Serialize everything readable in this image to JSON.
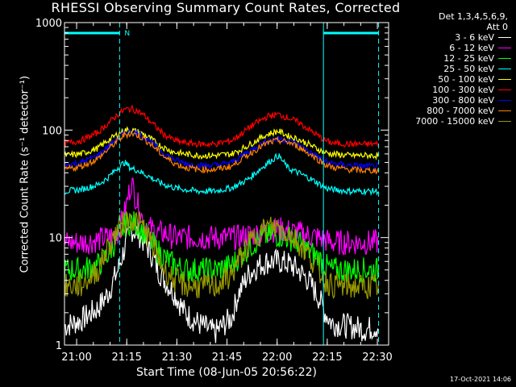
{
  "title": "RHESSI Observing Summary Count Rates, Corrected",
  "timestamp": "17-Oct-2021 14:06",
  "legend_header": [
    "Det 1,3,4,5,6,9,",
    "Att 0"
  ],
  "attenuator_marker": "N",
  "chart_data": {
    "type": "line",
    "title": "RHESSI Observing Summary Count Rates, Corrected",
    "xlabel": "Start Time (08-Jun-05 20:56:22)",
    "ylabel": "Corrected Count Rate (s⁻¹ detector⁻¹)",
    "x_unit": "minutes after 20:56:22",
    "xlim": [
      0,
      97
    ],
    "ylim": [
      1,
      1000
    ],
    "yscale": "log",
    "grid": false,
    "legend_position": "right",
    "x_ticks": [
      {
        "t": 3.63,
        "label": "21:00"
      },
      {
        "t": 18.63,
        "label": "21:15"
      },
      {
        "t": 33.63,
        "label": "21:30"
      },
      {
        "t": 48.63,
        "label": "21:45"
      },
      {
        "t": 63.63,
        "label": "22:00"
      },
      {
        "t": 78.63,
        "label": "22:15"
      },
      {
        "t": 93.63,
        "label": "22:30"
      }
    ],
    "y_ticks": [
      {
        "v": 1,
        "label": "1"
      },
      {
        "v": 10,
        "label": "10"
      },
      {
        "v": 100,
        "label": "100"
      },
      {
        "v": 1000,
        "label": "1000"
      }
    ],
    "vlines": [
      0,
      16.5,
      77.5,
      94
    ],
    "series": [
      {
        "name": "3 - 6 keV",
        "color": "#ffffff",
        "x": [
          0,
          5,
          10,
          13,
          16,
          18,
          20,
          22,
          24,
          26,
          28,
          30,
          33,
          36,
          40,
          45,
          50,
          52,
          55,
          58,
          61,
          64,
          67,
          70,
          73,
          76,
          78,
          80,
          85,
          90,
          94
        ],
        "values": [
          1.5,
          1.7,
          2.2,
          3.0,
          5.0,
          8.0,
          12,
          11,
          9,
          7,
          5,
          4,
          3,
          2,
          1.6,
          1.3,
          1.8,
          3.0,
          4.5,
          5.5,
          6.0,
          6.0,
          5.7,
          5.0,
          4.0,
          2.8,
          2.0,
          1.6,
          1.5,
          1.4,
          1.5
        ]
      },
      {
        "name": "6 - 12 keV",
        "color": "#ff00ff",
        "x": [
          0,
          5,
          10,
          13,
          16,
          18,
          20,
          22,
          24,
          26,
          28,
          30,
          33,
          36,
          40,
          45,
          50,
          52,
          55,
          58,
          61,
          64,
          67,
          70,
          73,
          76,
          78,
          80,
          85,
          90,
          94
        ],
        "values": [
          9,
          9,
          9.5,
          10,
          11,
          17,
          33,
          20,
          13,
          12,
          11,
          11,
          10,
          10,
          10,
          10,
          10,
          10,
          10.5,
          11,
          11.5,
          12,
          11.5,
          11,
          10.5,
          10,
          9.5,
          9,
          9,
          9,
          9
        ]
      },
      {
        "name": "12 - 25 keV",
        "color": "#00ff00",
        "x": [
          0,
          5,
          10,
          13,
          16,
          18,
          20,
          22,
          24,
          26,
          28,
          30,
          33,
          36,
          40,
          45,
          50,
          52,
          55,
          58,
          61,
          64,
          67,
          70,
          73,
          76,
          78,
          80,
          85,
          90,
          94
        ],
        "values": [
          5,
          5,
          5.5,
          7,
          10,
          13,
          14,
          13,
          11,
          9,
          7.5,
          6.5,
          5.5,
          5,
          5,
          5,
          5.5,
          6.5,
          8,
          9.5,
          10.5,
          10.5,
          10,
          9,
          7.5,
          6.5,
          5.5,
          5,
          5,
          5,
          5
        ]
      },
      {
        "name": "25 - 50 keV",
        "color": "#00ffff",
        "x": [
          0,
          5,
          10,
          13,
          16,
          18,
          20,
          22,
          24,
          26,
          28,
          30,
          33,
          36,
          40,
          45,
          50,
          52,
          55,
          58,
          61,
          64,
          67,
          70,
          73,
          76,
          78,
          80,
          85,
          90,
          94
        ],
        "values": [
          27,
          28,
          31,
          36,
          45,
          50,
          44,
          42,
          39,
          36,
          33,
          31,
          29,
          28,
          27,
          27,
          29,
          31,
          35,
          42,
          50,
          58,
          44,
          40,
          36,
          32,
          29,
          28,
          27,
          27,
          27
        ]
      },
      {
        "name": "50 - 100 keV",
        "color": "#ffff00",
        "x": [
          0,
          5,
          10,
          13,
          16,
          18,
          20,
          22,
          24,
          26,
          28,
          30,
          33,
          36,
          40,
          45,
          50,
          52,
          55,
          58,
          61,
          64,
          67,
          70,
          73,
          76,
          78,
          80,
          85,
          90,
          94
        ],
        "values": [
          58,
          60,
          68,
          80,
          92,
          100,
          100,
          96,
          90,
          82,
          74,
          68,
          62,
          60,
          58,
          58,
          60,
          64,
          72,
          82,
          92,
          98,
          88,
          82,
          74,
          66,
          62,
          60,
          58,
          58,
          58
        ]
      },
      {
        "name": "100 - 300 keV",
        "color": "#ff0000",
        "x": [
          0,
          5,
          10,
          13,
          16,
          18,
          20,
          22,
          24,
          26,
          28,
          30,
          33,
          36,
          40,
          45,
          50,
          52,
          55,
          58,
          61,
          64,
          67,
          70,
          73,
          76,
          78,
          80,
          85,
          90,
          94
        ],
        "values": [
          75,
          80,
          95,
          115,
          140,
          155,
          158,
          150,
          135,
          118,
          102,
          90,
          80,
          76,
          74,
          74,
          80,
          88,
          104,
          120,
          135,
          140,
          130,
          118,
          102,
          88,
          80,
          76,
          74,
          74,
          74
        ]
      },
      {
        "name": "300 - 800 keV",
        "color": "#0000ff",
        "x": [
          0,
          5,
          10,
          13,
          16,
          18,
          20,
          22,
          24,
          26,
          28,
          30,
          33,
          36,
          40,
          45,
          50,
          52,
          55,
          58,
          61,
          64,
          67,
          70,
          73,
          76,
          78,
          80,
          85,
          90,
          94
        ],
        "values": [
          47,
          50,
          58,
          70,
          84,
          94,
          97,
          93,
          86,
          77,
          68,
          60,
          53,
          49,
          47,
          47,
          50,
          55,
          63,
          72,
          80,
          83,
          80,
          73,
          64,
          56,
          51,
          49,
          47,
          46,
          46
        ]
      },
      {
        "name": "800 - 7000 keV",
        "color": "#ff8000",
        "x": [
          0,
          5,
          10,
          13,
          16,
          18,
          20,
          22,
          24,
          26,
          28,
          30,
          33,
          36,
          40,
          45,
          50,
          52,
          55,
          58,
          61,
          64,
          67,
          70,
          73,
          76,
          78,
          80,
          85,
          90,
          94
        ],
        "values": [
          43,
          46,
          54,
          66,
          80,
          90,
          93,
          89,
          82,
          73,
          64,
          56,
          49,
          45,
          43,
          43,
          46,
          51,
          59,
          68,
          76,
          80,
          77,
          70,
          61,
          53,
          48,
          45,
          43,
          42,
          42
        ]
      },
      {
        "name": "7000 - 15000 keV",
        "color": "#999900",
        "x": [
          0,
          5,
          10,
          13,
          16,
          18,
          20,
          22,
          24,
          26,
          28,
          30,
          33,
          36,
          40,
          45,
          50,
          52,
          55,
          58,
          61,
          64,
          67,
          70,
          73,
          76,
          78,
          80,
          85,
          90,
          94
        ],
        "values": [
          3.5,
          3.6,
          5.0,
          8.0,
          12,
          14,
          15,
          14,
          12,
          9,
          6.5,
          5,
          4,
          3.6,
          3.5,
          3.5,
          4.5,
          6,
          8.5,
          11,
          12.5,
          12.5,
          11,
          9,
          7,
          5,
          4,
          3.6,
          3.5,
          3.5,
          3.5
        ]
      }
    ]
  }
}
